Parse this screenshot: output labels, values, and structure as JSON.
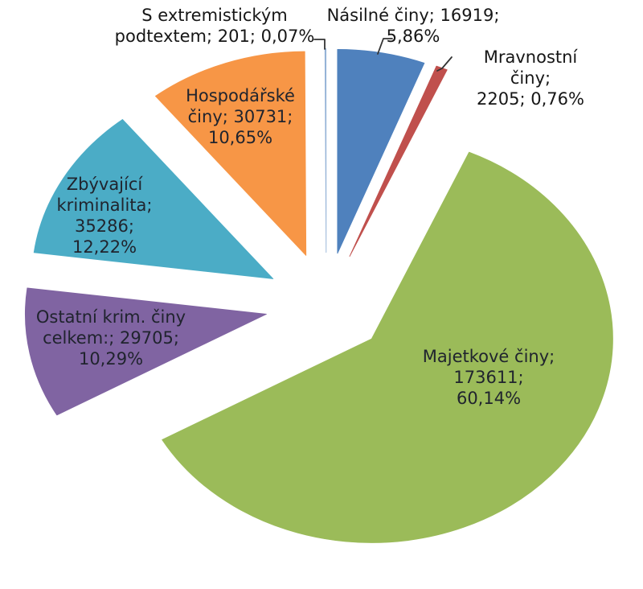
{
  "chart_data": {
    "type": "pie",
    "variant": "exploded",
    "title": "",
    "legend": "none",
    "background": "#ffffff",
    "start_angle_deg": 0,
    "direction": "clockwise",
    "total": 288658,
    "value_label_format": "name; value; percent",
    "slices": [
      {
        "key": "nasilne",
        "name": "Násilné činy",
        "value": 16919,
        "percent": 5.86,
        "percent_label": "5,86%",
        "color": "#4F81BD",
        "label_placement": "outside-top",
        "label_lines": [
          "Násilné činy; 16919;",
          "5,86%"
        ]
      },
      {
        "key": "mravnostni",
        "name": "Mravnostní činy",
        "value": 2205,
        "percent": 0.76,
        "percent_label": "0,76%",
        "color": "#C0504D",
        "label_placement": "outside-right",
        "label_lines": [
          "Mravnostní činy;",
          "2205; 0,76%"
        ]
      },
      {
        "key": "majetkove",
        "name": "Majetkové činy",
        "value": 173611,
        "percent": 60.14,
        "percent_label": "60,14%",
        "color": "#9BBB59",
        "label_placement": "inside",
        "label_lines": [
          "Majetkové činy; 173611;",
          "60,14%"
        ]
      },
      {
        "key": "ostatni",
        "name": "Ostatní krim. činy celkem:",
        "value": 29705,
        "percent": 10.29,
        "percent_label": "10,29%",
        "color": "#8064A2",
        "label_placement": "inside",
        "label_lines": [
          "Ostatní krim. činy",
          "celkem:; 29705;",
          "10,29%"
        ]
      },
      {
        "key": "zbyvajici",
        "name": "Zbývající kriminalita",
        "value": 35286,
        "percent": 12.22,
        "percent_label": "12,22%",
        "color": "#4BACC6",
        "label_placement": "inside",
        "label_lines": [
          "Zbývající",
          "kriminalita;",
          "35286;",
          "12,22%"
        ]
      },
      {
        "key": "hospodarske",
        "name": "Hospodářské činy",
        "value": 30731,
        "percent": 10.65,
        "percent_label": "10,65%",
        "color": "#F79646",
        "label_placement": "inside",
        "label_lines": [
          "Hospodářské",
          "činy; 30731;",
          "10,65%"
        ]
      },
      {
        "key": "extremisticky",
        "name": "S extremistickým podtextem",
        "value": 201,
        "percent": 0.07,
        "percent_label": "0,07%",
        "color": "#95B3D7",
        "label_placement": "outside-top-left",
        "label_lines": [
          "S extremistickým",
          "podtextem; 201; 0,07%"
        ]
      }
    ],
    "leader_line_color": "#333333"
  }
}
